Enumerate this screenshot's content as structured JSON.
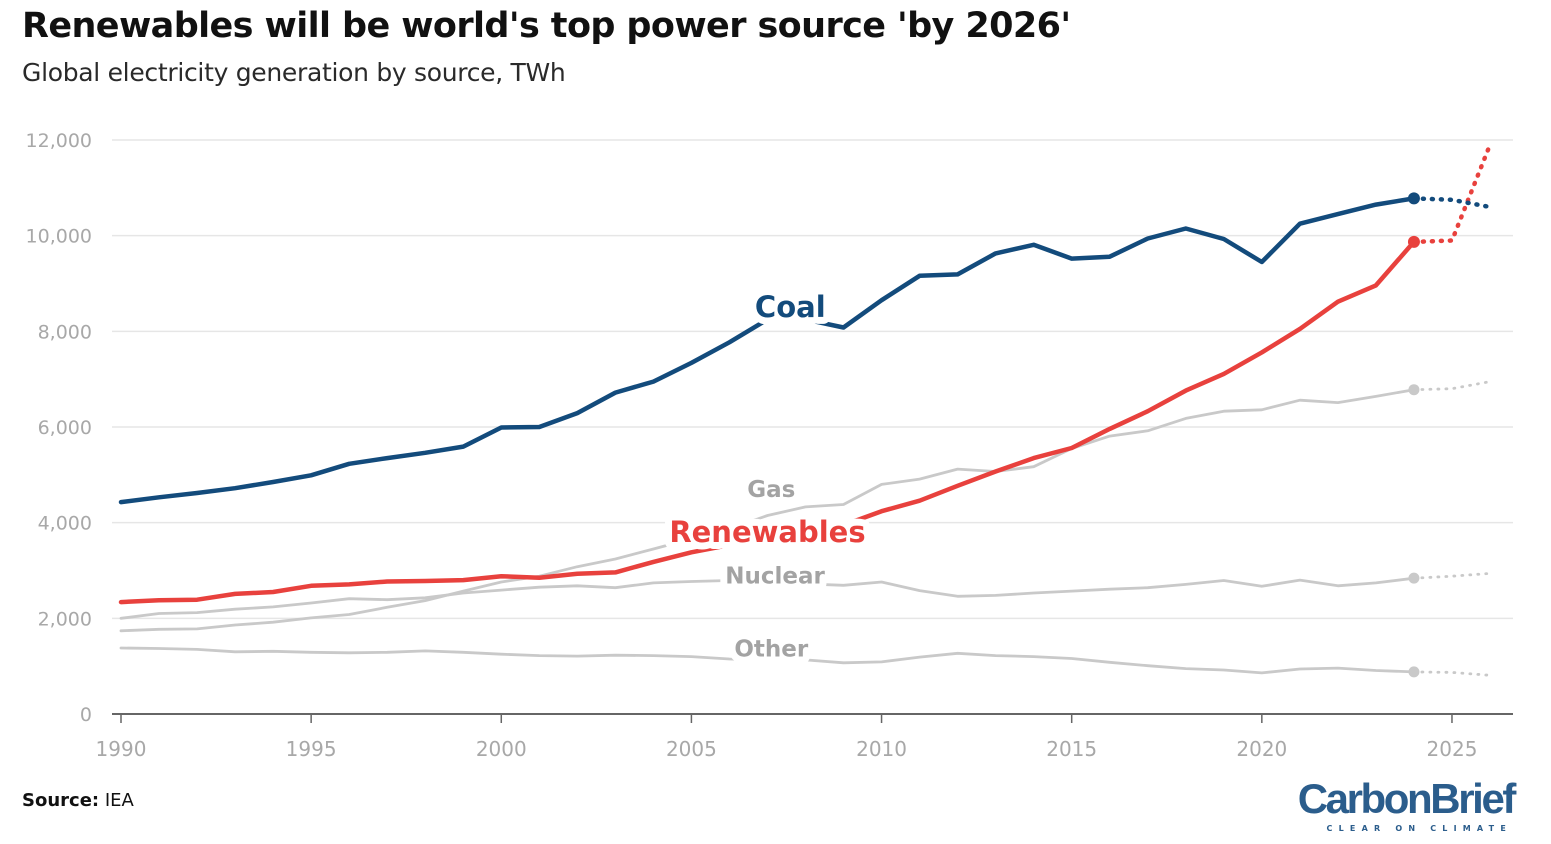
{
  "title": "Renewables will be world's top power source 'by 2026'",
  "subtitle": "Global electricity generation by source, TWh",
  "source": {
    "label": "Source:",
    "value": "IEA"
  },
  "logo": {
    "word": "CarbonBrief",
    "tagline": "CLEAR ON CLIMATE"
  },
  "colors": {
    "coal": "#134b7c",
    "renewables": "#e8413d",
    "grey_line": "#c9c9c9",
    "grey_label": "#a3a3a3",
    "gridline": "#e6e6e6",
    "axis": "#666666",
    "tick_text": "#a8a8a8"
  },
  "chart_data": {
    "type": "line",
    "title": "Renewables will be world's top power source 'by 2026'",
    "subtitle": "Global electricity generation by source, TWh",
    "xlabel": "",
    "ylabel": "",
    "xlim": [
      1990,
      2026
    ],
    "ylim": [
      0,
      12000
    ],
    "x_ticks": [
      1990,
      1995,
      2000,
      2005,
      2010,
      2015,
      2020,
      2025
    ],
    "y_ticks": [
      0,
      2000,
      4000,
      6000,
      8000,
      10000,
      12000
    ],
    "x_tick_labels": [
      "1990",
      "1995",
      "2000",
      "2005",
      "2010",
      "2015",
      "2020",
      "2025"
    ],
    "y_tick_labels": [
      "0",
      "2,000",
      "4,000",
      "6,000",
      "8,000",
      "10,000",
      "12,000"
    ],
    "grid": true,
    "legend": "inline labels",
    "series": [
      {
        "name": "Coal",
        "role": "coal",
        "label": "Coal",
        "label_at": [
          2007.6,
          8300
        ],
        "actual": [
          [
            1990,
            4430
          ],
          [
            1991,
            4530
          ],
          [
            1992,
            4620
          ],
          [
            1993,
            4720
          ],
          [
            1994,
            4850
          ],
          [
            1995,
            4990
          ],
          [
            1996,
            5230
          ],
          [
            1997,
            5350
          ],
          [
            1998,
            5460
          ],
          [
            1999,
            5590
          ],
          [
            2000,
            5990
          ],
          [
            2001,
            6000
          ],
          [
            2002,
            6290
          ],
          [
            2003,
            6720
          ],
          [
            2004,
            6950
          ],
          [
            2005,
            7340
          ],
          [
            2006,
            7770
          ],
          [
            2007,
            8250
          ],
          [
            2008,
            8250
          ],
          [
            2009,
            8080
          ],
          [
            2010,
            8650
          ],
          [
            2011,
            9160
          ],
          [
            2012,
            9190
          ],
          [
            2013,
            9630
          ],
          [
            2014,
            9810
          ],
          [
            2015,
            9520
          ],
          [
            2016,
            9560
          ],
          [
            2017,
            9940
          ],
          [
            2018,
            10150
          ],
          [
            2019,
            9930
          ],
          [
            2020,
            9450
          ],
          [
            2021,
            10250
          ],
          [
            2022,
            10450
          ],
          [
            2023,
            10650
          ],
          [
            2024,
            10780
          ]
        ],
        "forecast": [
          [
            2024,
            10780
          ],
          [
            2025,
            10750
          ],
          [
            2026,
            10600
          ]
        ]
      },
      {
        "name": "Renewables",
        "role": "renewables",
        "label": "Renewables",
        "label_at": [
          2007,
          3600
        ],
        "actual": [
          [
            1990,
            2340
          ],
          [
            1991,
            2380
          ],
          [
            1992,
            2390
          ],
          [
            1993,
            2510
          ],
          [
            1994,
            2550
          ],
          [
            1995,
            2680
          ],
          [
            1996,
            2710
          ],
          [
            1997,
            2770
          ],
          [
            1998,
            2780
          ],
          [
            1999,
            2800
          ],
          [
            2000,
            2880
          ],
          [
            2001,
            2850
          ],
          [
            2002,
            2930
          ],
          [
            2003,
            2960
          ],
          [
            2004,
            3180
          ],
          [
            2005,
            3380
          ],
          [
            2006,
            3530
          ],
          [
            2007,
            3650
          ],
          [
            2008,
            3820
          ],
          [
            2009,
            3950
          ],
          [
            2010,
            4240
          ],
          [
            2011,
            4460
          ],
          [
            2012,
            4770
          ],
          [
            2013,
            5070
          ],
          [
            2014,
            5350
          ],
          [
            2015,
            5560
          ],
          [
            2016,
            5960
          ],
          [
            2017,
            6330
          ],
          [
            2018,
            6760
          ],
          [
            2019,
            7110
          ],
          [
            2020,
            7560
          ],
          [
            2021,
            8050
          ],
          [
            2022,
            8620
          ],
          [
            2023,
            8960
          ],
          [
            2024,
            9870
          ]
        ],
        "forecast": [
          [
            2024,
            9870
          ],
          [
            2025,
            9900
          ],
          [
            2026,
            11900
          ]
        ]
      },
      {
        "name": "Gas",
        "role": "grey",
        "label": "Gas",
        "label_at": [
          2007.1,
          4540
        ],
        "actual": [
          [
            1990,
            1740
          ],
          [
            1991,
            1770
          ],
          [
            1992,
            1780
          ],
          [
            1993,
            1860
          ],
          [
            1994,
            1920
          ],
          [
            1995,
            2010
          ],
          [
            1996,
            2080
          ],
          [
            1997,
            2230
          ],
          [
            1998,
            2370
          ],
          [
            1999,
            2570
          ],
          [
            2000,
            2760
          ],
          [
            2001,
            2880
          ],
          [
            2002,
            3080
          ],
          [
            2003,
            3240
          ],
          [
            2004,
            3450
          ],
          [
            2005,
            3660
          ],
          [
            2006,
            3870
          ],
          [
            2007,
            4150
          ],
          [
            2008,
            4330
          ],
          [
            2009,
            4380
          ],
          [
            2010,
            4800
          ],
          [
            2011,
            4910
          ],
          [
            2012,
            5120
          ],
          [
            2013,
            5070
          ],
          [
            2014,
            5170
          ],
          [
            2015,
            5550
          ],
          [
            2016,
            5810
          ],
          [
            2017,
            5920
          ],
          [
            2018,
            6180
          ],
          [
            2019,
            6330
          ],
          [
            2020,
            6360
          ],
          [
            2021,
            6560
          ],
          [
            2022,
            6510
          ],
          [
            2023,
            6640
          ],
          [
            2024,
            6780
          ]
        ],
        "forecast": [
          [
            2024,
            6780
          ],
          [
            2025,
            6800
          ],
          [
            2026,
            6950
          ]
        ]
      },
      {
        "name": "Nuclear",
        "role": "grey",
        "label": "Nuclear",
        "label_at": [
          2007.2,
          2730
        ],
        "actual": [
          [
            1990,
            2000
          ],
          [
            1991,
            2100
          ],
          [
            1992,
            2120
          ],
          [
            1993,
            2190
          ],
          [
            1994,
            2240
          ],
          [
            1995,
            2320
          ],
          [
            1996,
            2410
          ],
          [
            1997,
            2390
          ],
          [
            1998,
            2430
          ],
          [
            1999,
            2530
          ],
          [
            2000,
            2590
          ],
          [
            2001,
            2650
          ],
          [
            2002,
            2680
          ],
          [
            2003,
            2640
          ],
          [
            2004,
            2740
          ],
          [
            2005,
            2770
          ],
          [
            2006,
            2790
          ],
          [
            2007,
            2720
          ],
          [
            2008,
            2720
          ],
          [
            2009,
            2690
          ],
          [
            2010,
            2760
          ],
          [
            2011,
            2580
          ],
          [
            2012,
            2460
          ],
          [
            2013,
            2480
          ],
          [
            2014,
            2530
          ],
          [
            2015,
            2570
          ],
          [
            2016,
            2610
          ],
          [
            2017,
            2640
          ],
          [
            2018,
            2710
          ],
          [
            2019,
            2790
          ],
          [
            2020,
            2670
          ],
          [
            2021,
            2800
          ],
          [
            2022,
            2680
          ],
          [
            2023,
            2740
          ],
          [
            2024,
            2840
          ]
        ],
        "forecast": [
          [
            2024,
            2840
          ],
          [
            2025,
            2880
          ],
          [
            2026,
            2940
          ]
        ]
      },
      {
        "name": "Other",
        "role": "grey",
        "label": "Other",
        "label_at": [
          2007.1,
          1200
        ],
        "actual": [
          [
            1990,
            1380
          ],
          [
            1991,
            1370
          ],
          [
            1992,
            1350
          ],
          [
            1993,
            1300
          ],
          [
            1994,
            1310
          ],
          [
            1995,
            1290
          ],
          [
            1996,
            1280
          ],
          [
            1997,
            1290
          ],
          [
            1998,
            1320
          ],
          [
            1999,
            1290
          ],
          [
            2000,
            1250
          ],
          [
            2001,
            1220
          ],
          [
            2002,
            1210
          ],
          [
            2003,
            1230
          ],
          [
            2004,
            1220
          ],
          [
            2005,
            1200
          ],
          [
            2006,
            1150
          ],
          [
            2007,
            1130
          ],
          [
            2008,
            1130
          ],
          [
            2009,
            1070
          ],
          [
            2010,
            1090
          ],
          [
            2011,
            1190
          ],
          [
            2012,
            1270
          ],
          [
            2013,
            1220
          ],
          [
            2014,
            1200
          ],
          [
            2015,
            1160
          ],
          [
            2016,
            1080
          ],
          [
            2017,
            1010
          ],
          [
            2018,
            950
          ],
          [
            2019,
            920
          ],
          [
            2020,
            860
          ],
          [
            2021,
            940
          ],
          [
            2022,
            960
          ],
          [
            2023,
            910
          ],
          [
            2024,
            880
          ]
        ],
        "forecast": [
          [
            2024,
            880
          ],
          [
            2025,
            870
          ],
          [
            2026,
            810
          ]
        ]
      }
    ]
  }
}
